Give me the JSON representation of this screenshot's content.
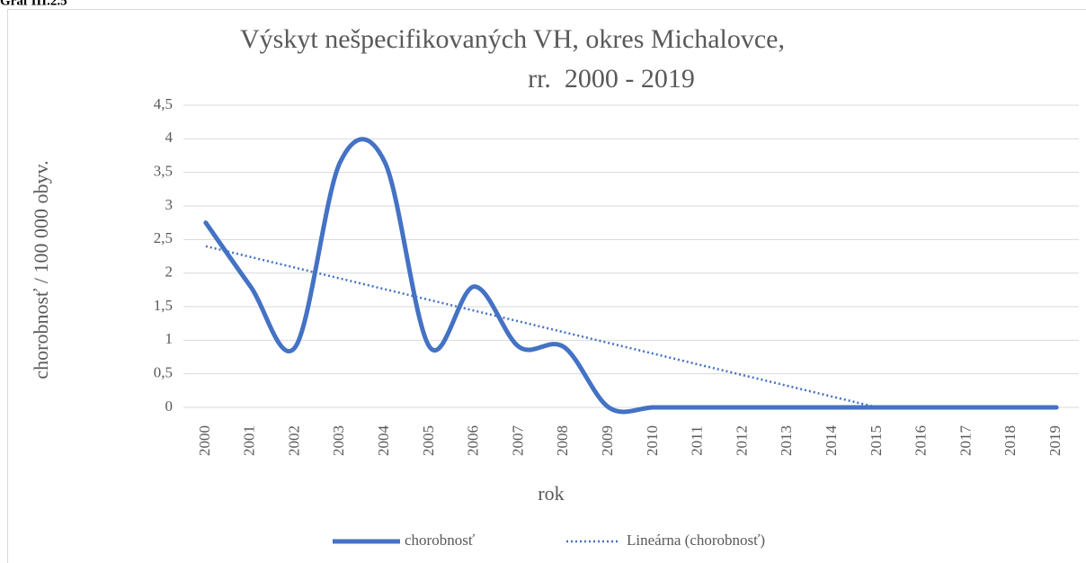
{
  "caption": "Graf III.2.5",
  "chart_data": {
    "type": "line",
    "title": [
      "Výskyt nešpecifikovaných VH, okres Michalovce,",
      "rr.  2000 - 2019"
    ],
    "x_label": "rok",
    "y_label": "chorobnosť / 100 000 obyv.",
    "categories": [
      "2000",
      "2001",
      "2002",
      "2003",
      "2004",
      "2005",
      "2006",
      "2007",
      "2008",
      "2009",
      "2010",
      "2011",
      "2012",
      "2013",
      "2014",
      "2015",
      "2016",
      "2017",
      "2018",
      "2019"
    ],
    "series": [
      {
        "name": "chorobnosť",
        "color": "#4472c4",
        "style": "solid",
        "smooth": true,
        "values": [
          2.75,
          1.8,
          0.9,
          3.65,
          3.65,
          0.9,
          1.8,
          0.9,
          0.9,
          0,
          0,
          0,
          0,
          0,
          0,
          0,
          0,
          0,
          0,
          0
        ]
      },
      {
        "name": "Lineárna (chorobnosť)",
        "color": "#4472c4",
        "style": "dotted",
        "smooth": false,
        "values": [
          2.4,
          2.24,
          2.08,
          1.92,
          1.76,
          1.6,
          1.44,
          1.28,
          1.12,
          0.96,
          0.8,
          0.64,
          0.48,
          0.32,
          0.16,
          0,
          null,
          null,
          null,
          null
        ]
      }
    ],
    "ylim": [
      0,
      4.5
    ],
    "yticks": [
      0,
      {
        "value": 0.5,
        "label": "0,5"
      },
      1,
      {
        "value": 1.5,
        "label": "1,5"
      },
      2,
      {
        "value": 2.5,
        "label": "2,5"
      },
      3,
      {
        "value": 3.5,
        "label": "3,5"
      },
      4,
      {
        "value": 4.5,
        "label": "4,5"
      }
    ],
    "grid": true,
    "legend": "bottom"
  }
}
